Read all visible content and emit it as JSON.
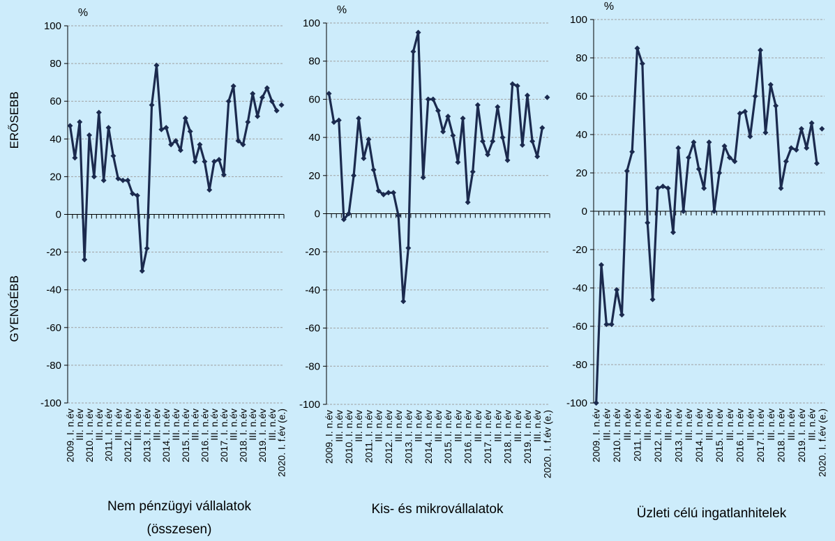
{
  "chart_data": [
    {
      "type": "line",
      "title": "Nem pénzügyi vállalatok (összesen)",
      "y_label": "%",
      "annotations": [
        "ERŐSEBB",
        "GYENGÉBB"
      ],
      "categories": [
        "2009. I. n.év",
        null,
        "III. n.év",
        null,
        "2010. I. n.év",
        null,
        "III. n.év",
        null,
        "2011. I. n.év",
        null,
        "III. n.év",
        null,
        "2012. I. n.év",
        null,
        "III. n.év",
        null,
        "2013. I. n.év",
        null,
        "III. n.év",
        null,
        "2014. I. n.év",
        null,
        "III. n.év",
        null,
        "2015. I. n.év",
        null,
        "III. n.év",
        null,
        "2016. I. n.év",
        null,
        "III. n.év",
        null,
        "2017. I. n.év",
        null,
        "III. n.év",
        null,
        "2018. I. n.év",
        null,
        "III. n.év",
        null,
        "2019. I. n.év",
        null,
        "III. n.év",
        null,
        "2020. I. f.év (e.)"
      ],
      "series": [
        {
          "color": "#1b2a4e",
          "values": [
            47,
            30,
            49,
            -24,
            42,
            20,
            54,
            18,
            46,
            31,
            19,
            18,
            18,
            11,
            10,
            -30,
            -18,
            58,
            79,
            45,
            46,
            37,
            39,
            34,
            51,
            44,
            28,
            37,
            28,
            13,
            28,
            29,
            21,
            60,
            68,
            39,
            37,
            49,
            64,
            52,
            62,
            67,
            60,
            55,
            null
          ]
        },
        {
          "color": "#1b2a4e",
          "values": [
            null,
            null,
            null,
            null,
            null,
            null,
            null,
            null,
            null,
            null,
            null,
            null,
            null,
            null,
            null,
            null,
            null,
            null,
            null,
            null,
            null,
            null,
            null,
            null,
            null,
            null,
            null,
            null,
            null,
            null,
            null,
            null,
            null,
            null,
            null,
            null,
            null,
            null,
            null,
            null,
            null,
            null,
            null,
            null,
            58
          ]
        }
      ],
      "ylim": [
        -100,
        100
      ],
      "yticks": [
        -100,
        -80,
        -60,
        -40,
        -20,
        0,
        20,
        40,
        60,
        80,
        100
      ],
      "grid": true
    },
    {
      "type": "line",
      "title": "Kis- és mikrovállalatok",
      "y_label": "%",
      "categories": [
        "2009. I. n.év",
        null,
        "III. n.év",
        null,
        "2010. I. n.év",
        null,
        "III. n.év",
        null,
        "2011. I. n.év",
        null,
        "III. n.év",
        null,
        "2012. I. n.év",
        null,
        "III. n.év",
        null,
        "2013. I. n.év",
        null,
        "III. n.év",
        null,
        "2014. I. n.év",
        null,
        "III. n.év",
        null,
        "2015. I. n.év",
        null,
        "III. n.év",
        null,
        "2016. I. n.év",
        null,
        "III. n.év",
        null,
        "2017. I. n.év",
        null,
        "III. n.év",
        null,
        "2018. I. n.év",
        null,
        "III. n.év",
        null,
        "2019. I. n.év",
        null,
        "III. n.év",
        null,
        "2020. I. f.év (e.)"
      ],
      "series": [
        {
          "color": "#1b2a4e",
          "values": [
            63,
            48,
            49,
            -3,
            0,
            20,
            50,
            29,
            39,
            23,
            12,
            10,
            11,
            11,
            -1,
            -46,
            -18,
            85,
            95,
            19,
            60,
            60,
            54,
            43,
            51,
            41,
            27,
            50,
            6,
            22,
            57,
            38,
            31,
            38,
            56,
            40,
            28,
            68,
            67,
            36,
            62,
            38,
            30,
            45,
            null
          ]
        },
        {
          "color": "#1b2a4e",
          "values": [
            null,
            null,
            null,
            null,
            null,
            null,
            null,
            null,
            null,
            null,
            null,
            null,
            null,
            null,
            null,
            null,
            null,
            null,
            null,
            null,
            null,
            null,
            null,
            null,
            null,
            null,
            null,
            null,
            null,
            null,
            null,
            null,
            null,
            null,
            null,
            null,
            null,
            null,
            null,
            null,
            null,
            null,
            null,
            null,
            61
          ]
        }
      ],
      "ylim": [
        -100,
        100
      ],
      "yticks": [
        -100,
        -80,
        -60,
        -40,
        -20,
        0,
        20,
        40,
        60,
        80,
        100
      ],
      "grid": true
    },
    {
      "type": "line",
      "title": "Üzleti célú ingatlanhitelek",
      "y_label": "%",
      "categories": [
        "2009. I. n.év",
        null,
        "III. n.év",
        null,
        "2010. I. n.év",
        null,
        "III. n.év",
        null,
        "2011. I. n.év",
        null,
        "III. n.év",
        null,
        "2012. I. n.év",
        null,
        "III. n.év",
        null,
        "2013. I. n.év",
        null,
        "III. n.év",
        null,
        "2014. I. n.év",
        null,
        "III. n.év",
        null,
        "2015. I. n.év",
        null,
        "III. n.év",
        null,
        "2016. I. n.év",
        null,
        "III. n.év",
        null,
        "2017. I. n.év",
        null,
        "III. n.év",
        null,
        "2018. I. n.év",
        null,
        "III. n.év",
        null,
        "2019. I. n.év",
        null,
        "III. n.év",
        null,
        "2020. I. f.év (e.)"
      ],
      "series": [
        {
          "color": "#1b2a4e",
          "values": [
            -100,
            -28,
            -59,
            -59,
            -41,
            -54,
            21,
            31,
            85,
            77,
            -6,
            -46,
            12,
            13,
            12,
            -11,
            33,
            0,
            28,
            36,
            22,
            12,
            36,
            0,
            20,
            34,
            28,
            26,
            51,
            52,
            39,
            60,
            84,
            41,
            66,
            55,
            12,
            26,
            33,
            32,
            43,
            33,
            46,
            25,
            null
          ]
        },
        {
          "color": "#1b2a4e",
          "values": [
            null,
            null,
            null,
            null,
            null,
            null,
            null,
            null,
            null,
            null,
            null,
            null,
            null,
            null,
            null,
            null,
            null,
            null,
            null,
            null,
            null,
            null,
            null,
            null,
            null,
            null,
            null,
            null,
            null,
            null,
            null,
            null,
            null,
            null,
            null,
            null,
            null,
            null,
            null,
            null,
            null,
            null,
            null,
            null,
            43
          ]
        }
      ],
      "ylim": [
        -100,
        100
      ],
      "yticks": [
        -100,
        -80,
        -60,
        -40,
        -20,
        0,
        20,
        40,
        60,
        80,
        100
      ],
      "grid": true
    }
  ]
}
